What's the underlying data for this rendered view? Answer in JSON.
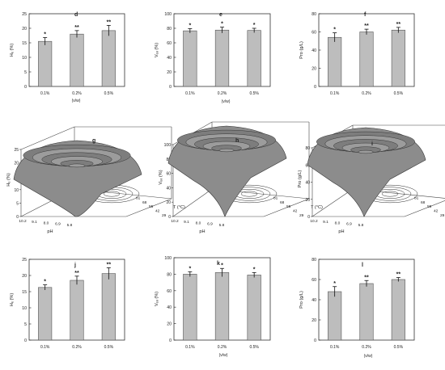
{
  "chart_data": [
    {
      "panel": "d",
      "type": "bar",
      "categories": [
        "0.1%",
        "0.2%",
        "0.5%"
      ],
      "values": [
        15.5,
        18,
        19.2
      ],
      "errors": [
        1.3,
        1.2,
        1.8
      ],
      "significance": [
        "*",
        "**",
        "**"
      ],
      "ylabel": "Hₑ (%)",
      "xlabel": "(v/w)",
      "ylim": [
        0,
        25
      ],
      "yticks": [
        0,
        5,
        10,
        15,
        20,
        25
      ]
    },
    {
      "panel": "e",
      "type": "bar",
      "categories": [
        "0.1%",
        "0.2%",
        "0.5%"
      ],
      "values": [
        76.5,
        77.5,
        77
      ],
      "errors": [
        3,
        4,
        3
      ],
      "significance": [
        "*",
        "*",
        "*"
      ],
      "ylabel": "Vₑₔ (%)",
      "xlabel": "(v/w)",
      "ylim": [
        0,
        100
      ],
      "yticks": [
        0,
        20,
        40,
        60,
        80,
        100
      ]
    },
    {
      "panel": "f",
      "type": "bar",
      "categories": [
        "0.1%",
        "0.2%",
        "0.5%"
      ],
      "values": [
        54,
        60,
        62
      ],
      "errors": [
        5,
        3,
        3
      ],
      "significance": [
        "*",
        "**",
        "**"
      ],
      "ylabel": "Pro (g/L)",
      "xlabel": "",
      "ylim": [
        0,
        80
      ],
      "yticks": [
        0,
        20,
        40,
        60,
        80
      ]
    },
    {
      "panel": "g",
      "type": "surface",
      "zlabel": "Hₑ (%)",
      "xlabel": "pH",
      "ylabel": "T (°C)",
      "zticks": [
        0,
        5,
        10,
        15,
        20,
        25
      ],
      "xticks": [
        "10.2",
        "9.1",
        "8.0",
        "6.9",
        "5.8"
      ],
      "yticks": [
        "29",
        "42",
        "55",
        "68",
        "81"
      ]
    },
    {
      "panel": "h",
      "type": "surface",
      "zlabel": "Vₑₔ (%)",
      "xlabel": "pH",
      "ylabel": "T (°C)",
      "zticks": [
        0,
        20,
        40,
        60,
        80,
        100
      ],
      "xticks": [
        "10.2",
        "9.1",
        "8.0",
        "6.9",
        "5.8"
      ],
      "yticks": [
        "29",
        "42",
        "55",
        "68",
        "81"
      ]
    },
    {
      "panel": "i",
      "type": "surface",
      "zlabel": "Pro (g/L)",
      "xlabel": "pH",
      "ylabel": "T (°C)",
      "zticks": [
        0,
        20,
        40,
        60,
        80
      ],
      "xticks": [
        "10.2",
        "9.1",
        "8.0",
        "6.9",
        "5.8"
      ],
      "yticks": [
        "29",
        "42",
        "55",
        "68",
        "81"
      ]
    },
    {
      "panel": "j",
      "type": "bar",
      "categories": [
        "0.1%",
        "0.2%",
        "0.5%"
      ],
      "values": [
        16.3,
        18.5,
        20.6
      ],
      "errors": [
        0.8,
        1.3,
        1.8
      ],
      "significance": [
        "*",
        "**",
        "**"
      ],
      "ylabel": "Hₑ (%)",
      "xlabel": "",
      "ylim": [
        0,
        25
      ],
      "yticks": [
        0,
        5,
        10,
        15,
        20,
        25
      ]
    },
    {
      "panel": "k",
      "type": "bar",
      "categories": [
        "0.1%",
        "0.2%",
        "0.5%"
      ],
      "values": [
        80,
        82,
        79
      ],
      "errors": [
        3,
        5,
        3
      ],
      "significance": [
        "*",
        "*",
        "*"
      ],
      "ylabel": "Vₑₔ (%)",
      "xlabel": "(v/w)",
      "ylim": [
        0,
        100
      ],
      "yticks": [
        0,
        20,
        40,
        60,
        80,
        100
      ]
    },
    {
      "panel": "l",
      "type": "bar",
      "categories": [
        "0.1%",
        "0.2%",
        "0.5%"
      ],
      "values": [
        48,
        56,
        60
      ],
      "errors": [
        5,
        3,
        2
      ],
      "significance": [
        "*",
        "**",
        "**"
      ],
      "ylabel": "Pro (g/L)",
      "xlabel": "(v/w)",
      "ylim": [
        0,
        80
      ],
      "yticks": [
        0,
        20,
        40,
        60,
        80
      ]
    }
  ],
  "colors": {
    "bar_fill": "#bdbdbd",
    "axis": "#333333",
    "surface": "#8c8c8c",
    "contour": "#2b2b2b"
  }
}
